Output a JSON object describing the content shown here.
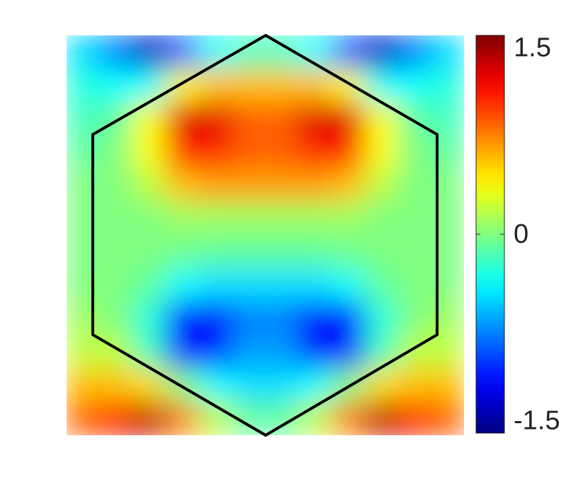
{
  "chart_data": {
    "type": "heatmap",
    "colormap": "jet",
    "values": [
      [
        -0.5,
        -0.8,
        -1.4,
        -0.9,
        -0.4,
        -0.2,
        -0.2,
        -0.4,
        -0.9,
        -1.4,
        -0.8,
        -0.5
      ],
      [
        -0.3,
        -0.4,
        -0.4,
        0.4,
        0.6,
        0.6,
        0.6,
        0.6,
        0.4,
        -0.4,
        -0.4,
        -0.3
      ],
      [
        -0.2,
        -0.1,
        0.4,
        1.3,
        1.3,
        0.9,
        0.9,
        1.3,
        1.3,
        0.4,
        -0.1,
        -0.2
      ],
      [
        -0.1,
        0,
        0.4,
        1.1,
        1.1,
        0.9,
        0.9,
        1.1,
        1.1,
        0.4,
        0,
        -0.1
      ],
      [
        0,
        0,
        0.2,
        0.6,
        0.7,
        0.7,
        0.7,
        0.7,
        0.6,
        0.2,
        0,
        0
      ],
      [
        0,
        0,
        0,
        0.1,
        0.1,
        0.1,
        0.1,
        0.1,
        0.1,
        0,
        0,
        0
      ],
      [
        0,
        0,
        0,
        -0.05,
        -0.1,
        -0.1,
        -0.1,
        -0.1,
        -0.05,
        0,
        0,
        0
      ],
      [
        0,
        0,
        -0.1,
        -0.4,
        -0.5,
        -0.5,
        -0.5,
        -0.5,
        -0.4,
        -0.1,
        0,
        0
      ],
      [
        0.1,
        0,
        -0.3,
        -1.2,
        -1.2,
        -0.8,
        -0.8,
        -1.2,
        -1.2,
        -0.3,
        0,
        0.1
      ],
      [
        0.2,
        0.2,
        -0.2,
        -1.1,
        -1.1,
        -0.7,
        -0.7,
        -1.1,
        -1.1,
        -0.2,
        0.2,
        0.2
      ],
      [
        0.6,
        0.6,
        0.5,
        0,
        -0.4,
        -0.5,
        -0.5,
        -0.4,
        0,
        0.5,
        0.6,
        0.6
      ],
      [
        0.9,
        1.1,
        1.4,
        0.8,
        0.2,
        -0.1,
        -0.1,
        0.2,
        0.8,
        1.4,
        1.1,
        0.9
      ]
    ],
    "colorbar": {
      "lim": [
        -1.6,
        1.6
      ],
      "ticks": [
        1.5,
        0,
        -1.5
      ]
    }
  }
}
